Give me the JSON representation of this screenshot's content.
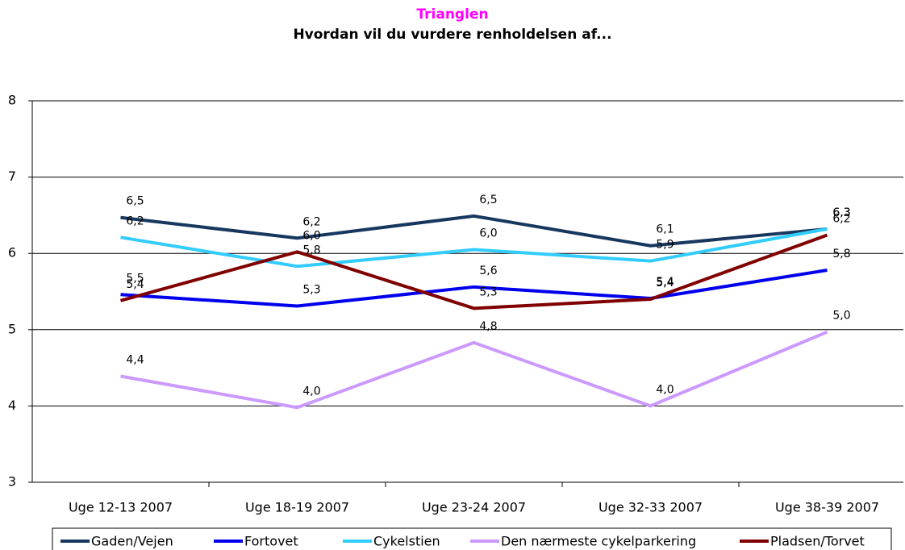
{
  "chart_data": {
    "type": "line",
    "title": "Trianglen",
    "subtitle": "Hvordan vil du vurdere renholdelsen af...",
    "categories": [
      "Uge 12-13 2007",
      "Uge 18-19 2007",
      "Uge 23-24 2007",
      "Uge 32-33 2007",
      "Uge 38-39 2007"
    ],
    "series": [
      {
        "name": "Gaden/Vejen",
        "color": "#17375e",
        "values": [
          6.47,
          6.2,
          6.49,
          6.1,
          6.32
        ],
        "value_labels": [
          "6,5",
          "6,2",
          "6,5",
          "6,1",
          "6,3"
        ]
      },
      {
        "name": "Fortovet",
        "color": "#0000ee",
        "values": [
          5.46,
          5.31,
          5.56,
          5.41,
          5.78
        ],
        "value_labels": [
          "5,5",
          "5,3",
          "5,6",
          "5,4",
          "5,8"
        ]
      },
      {
        "name": "Cykelstien",
        "color": "#33ccff",
        "values": [
          6.21,
          5.83,
          6.05,
          5.9,
          6.32
        ],
        "value_labels": [
          "6,2",
          "5,8",
          "6,0",
          "5,9",
          "6,3"
        ]
      },
      {
        "name": "Den nærmeste cykelparkering",
        "color": "#cc99ff",
        "values": [
          4.39,
          3.98,
          4.83,
          4.0,
          4.97
        ],
        "value_labels": [
          "4,4",
          "4,0",
          "4,8",
          "4,0",
          "5,0"
        ]
      },
      {
        "name": "Pladsen/Torvet",
        "color": "#800000",
        "values": [
          5.38,
          6.02,
          5.28,
          5.4,
          6.24
        ],
        "value_labels": [
          "5,4",
          "6,0",
          "5,3",
          "5,4",
          "6,2"
        ]
      }
    ],
    "ylim": [
      3,
      8
    ],
    "yticks": [
      3,
      4,
      5,
      6,
      7,
      8
    ],
    "grid": true,
    "legend": "bottom"
  }
}
